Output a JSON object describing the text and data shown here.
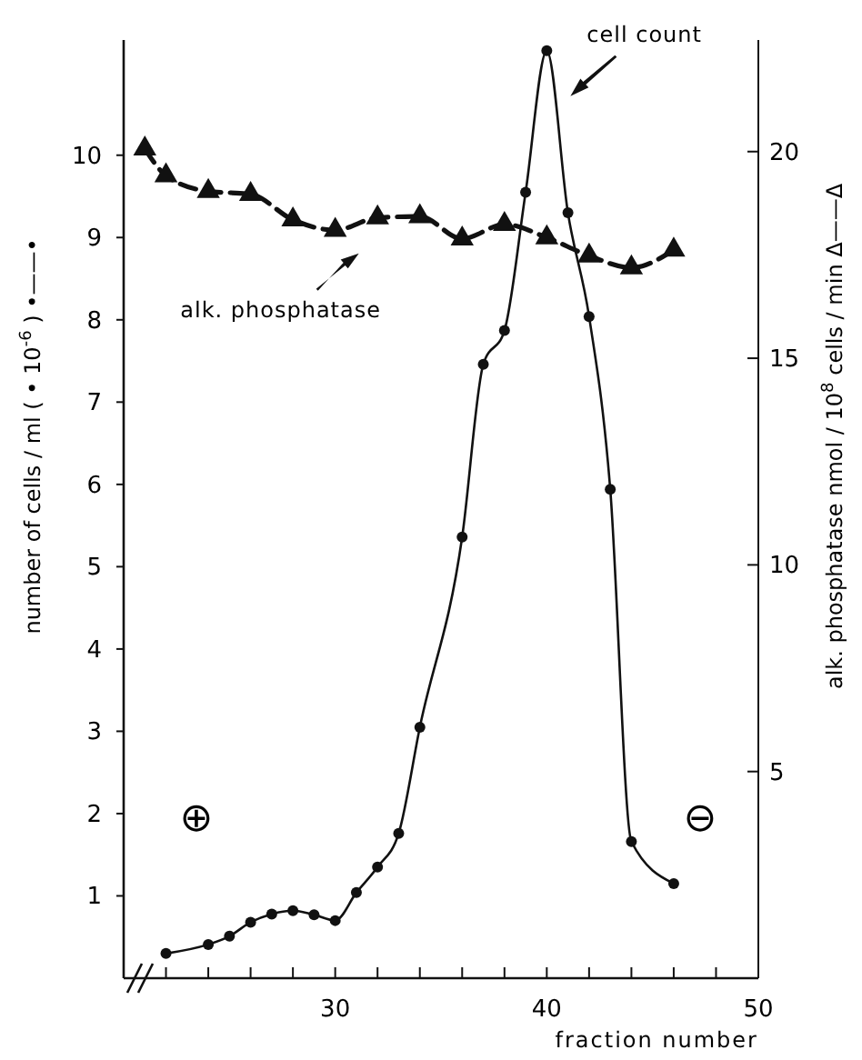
{
  "chart_data": {
    "type": "line",
    "xlabel": "fraction number",
    "ylabel": "number of cells / ml ( • 10$^{-6}$ ) •——•",
    "y2label": "alk. phosphatase nmol / 10$^{8}$ cells / min Δ——Δ",
    "xlim": [
      20,
      50
    ],
    "xticks": [
      {
        "value": 22,
        "label": null
      },
      {
        "value": 24,
        "label": null
      },
      {
        "value": 26,
        "label": null
      },
      {
        "value": 28,
        "label": null
      },
      30,
      {
        "value": 32,
        "label": null
      },
      {
        "value": 34,
        "label": null
      },
      {
        "value": 36,
        "label": null
      },
      {
        "value": 38,
        "label": null
      },
      40,
      {
        "value": 42,
        "label": null
      },
      {
        "value": 44,
        "label": null
      },
      {
        "value": 46,
        "label": null
      },
      {
        "value": 48,
        "label": null
      },
      50
    ],
    "ylim": [
      0,
      11.4
    ],
    "yticks": [
      1,
      2,
      3,
      4,
      5,
      6,
      7,
      8,
      9,
      10
    ],
    "y2lim": [
      0,
      22.7
    ],
    "y2ticks": [
      5,
      10,
      15,
      20
    ],
    "grid": false,
    "series": [
      {
        "color": "#111111",
        "marker": "circle",
        "line_style": "solid",
        "x": [
          22,
          24,
          25,
          26,
          27,
          28,
          29,
          30,
          31,
          32,
          33,
          34,
          36,
          37,
          38,
          39,
          40,
          41,
          42,
          43,
          44,
          46
        ],
        "values": [
          0.3,
          0.41,
          0.51,
          0.68,
          0.78,
          0.82,
          0.77,
          0.7,
          1.04,
          1.35,
          1.76,
          3.05,
          5.36,
          7.46,
          7.87,
          9.55,
          11.27,
          9.3,
          8.04,
          5.94,
          1.66,
          1.15
        ]
      },
      {
        "color": "#111111",
        "marker": "triangle",
        "line_style": "dashed",
        "axis": "y2",
        "x": [
          21,
          22,
          24,
          26,
          28,
          30,
          32,
          34,
          36,
          38,
          40,
          42,
          44,
          46
        ],
        "values": [
          20.07,
          19.42,
          19.04,
          18.97,
          18.35,
          18.1,
          18.4,
          18.43,
          17.89,
          18.24,
          17.92,
          17.48,
          17.19,
          17.62
        ]
      }
    ],
    "annotations": [
      {
        "text": "cell count",
        "x": 40,
        "y": 11.27
      },
      {
        "text": "alk. phosphatase",
        "x": 30,
        "y": 9.05
      },
      "⊕",
      "⊖"
    ]
  }
}
